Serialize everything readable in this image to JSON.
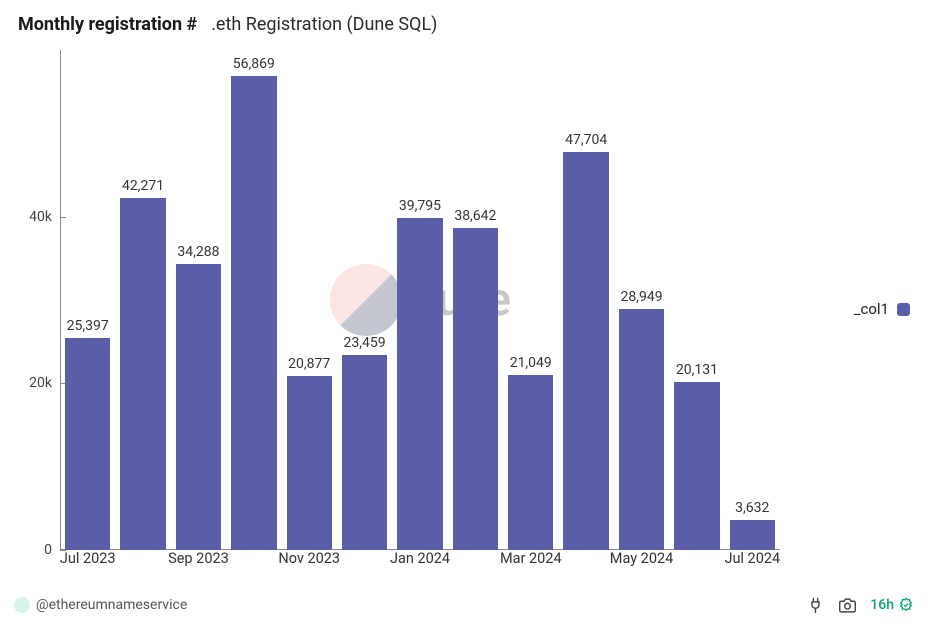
{
  "header": {
    "title_bold": "Monthly registration #",
    "title_sub": ".eth Registration (Dune SQL)"
  },
  "chart": {
    "type": "bar",
    "bar_color": "#5a5da8",
    "background_color": "#ffffff",
    "axis_color": "#888888",
    "label_color": "#333333",
    "ylim": [
      0,
      60000
    ],
    "yticks": [
      {
        "value": 0,
        "label": "0"
      },
      {
        "value": 20000,
        "label": "20k"
      },
      {
        "value": 40000,
        "label": "40k"
      }
    ],
    "x_axis_labels": [
      {
        "pos": 0,
        "label": "Jul 2023"
      },
      {
        "pos": 2,
        "label": "Sep 2023"
      },
      {
        "pos": 4,
        "label": "Nov 2023"
      },
      {
        "pos": 6,
        "label": "Jan 2024"
      },
      {
        "pos": 8,
        "label": "Mar 2024"
      },
      {
        "pos": 10,
        "label": "May 2024"
      },
      {
        "pos": 12,
        "label": "Jul 2024"
      }
    ],
    "bars": [
      {
        "value": 25397,
        "label": "25,397"
      },
      {
        "value": 42271,
        "label": "42,271"
      },
      {
        "value": 34288,
        "label": "34,288"
      },
      {
        "value": 56869,
        "label": "56,869"
      },
      {
        "value": 20877,
        "label": "20,877"
      },
      {
        "value": 23459,
        "label": "23,459"
      },
      {
        "value": 39795,
        "label": "39,795"
      },
      {
        "value": 38642,
        "label": "38,642"
      },
      {
        "value": 21049,
        "label": "21,049"
      },
      {
        "value": 47704,
        "label": "47,704"
      },
      {
        "value": 28949,
        "label": "28,949"
      },
      {
        "value": 20131,
        "label": "20,131"
      },
      {
        "value": 3632,
        "label": "3,632"
      }
    ],
    "bar_width_ratio": 0.82,
    "label_fontsize": 14,
    "axis_fontsize": 14.5
  },
  "watermark": {
    "text": "Dune",
    "circle_color_top": "#f5a6a0",
    "circle_color_bottom": "#2d3555"
  },
  "legend": {
    "label": "_col1",
    "swatch_color": "#5a5da8"
  },
  "footer": {
    "handle": "@ethereumnameservice",
    "time_badge": "16h",
    "badge_color": "#0ea572",
    "avatar_bg": "#d4f5e8"
  }
}
